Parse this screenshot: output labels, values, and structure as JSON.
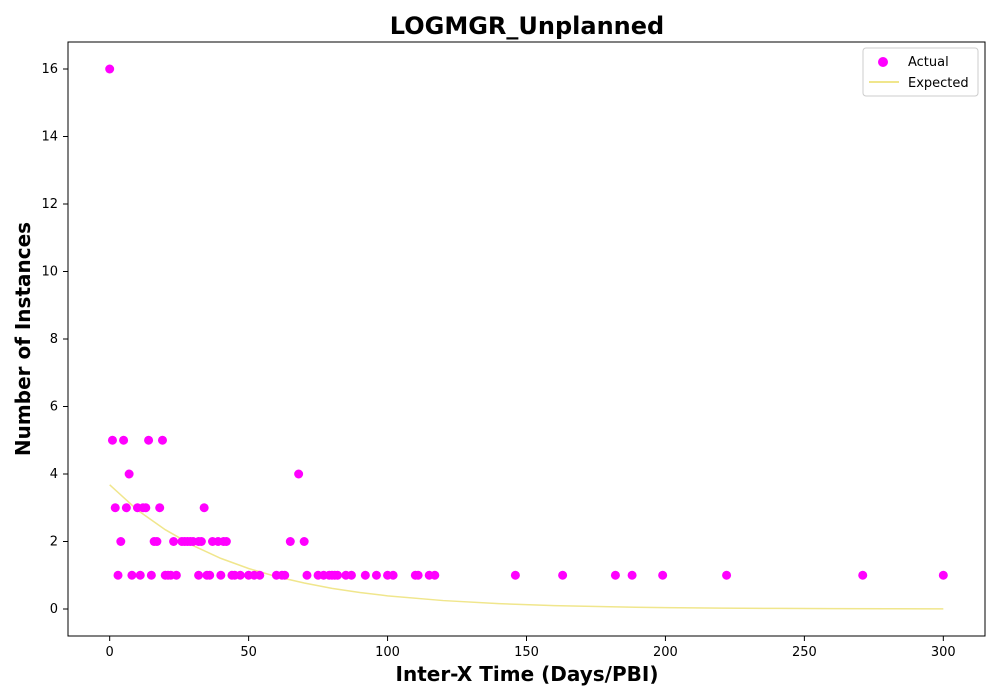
{
  "chart_data": {
    "type": "scatter",
    "title": "LOGMGR_Unplanned",
    "xlabel": "Inter-X Time (Days/PBI)",
    "ylabel": "Number of Instances",
    "xlim": [
      -15,
      315
    ],
    "ylim": [
      -0.8,
      16.8
    ],
    "xticks": [
      0,
      50,
      100,
      150,
      200,
      250,
      300
    ],
    "yticks": [
      0,
      2,
      4,
      6,
      8,
      10,
      12,
      14,
      16
    ],
    "grid": false,
    "legend_position": "top-right",
    "series": [
      {
        "name": "Actual",
        "kind": "scatter",
        "color": "#ff00ff",
        "points": [
          [
            0,
            16
          ],
          [
            1,
            5
          ],
          [
            2,
            3
          ],
          [
            3,
            1
          ],
          [
            4,
            2
          ],
          [
            5,
            5
          ],
          [
            6,
            3
          ],
          [
            7,
            4
          ],
          [
            8,
            1
          ],
          [
            10,
            3
          ],
          [
            11,
            1
          ],
          [
            12,
            3
          ],
          [
            13,
            3
          ],
          [
            14,
            5
          ],
          [
            15,
            1
          ],
          [
            16,
            2
          ],
          [
            17,
            2
          ],
          [
            18,
            3
          ],
          [
            19,
            5
          ],
          [
            20,
            1
          ],
          [
            21,
            1
          ],
          [
            22,
            1
          ],
          [
            23,
            2
          ],
          [
            24,
            1
          ],
          [
            26,
            2
          ],
          [
            27,
            2
          ],
          [
            28,
            2
          ],
          [
            29,
            2
          ],
          [
            30,
            2
          ],
          [
            32,
            1
          ],
          [
            32,
            2
          ],
          [
            33,
            2
          ],
          [
            34,
            3
          ],
          [
            35,
            1
          ],
          [
            36,
            1
          ],
          [
            37,
            2
          ],
          [
            39,
            2
          ],
          [
            40,
            1
          ],
          [
            41,
            2
          ],
          [
            42,
            2
          ],
          [
            44,
            1
          ],
          [
            45,
            1
          ],
          [
            47,
            1
          ],
          [
            50,
            1
          ],
          [
            52,
            1
          ],
          [
            54,
            1
          ],
          [
            60,
            1
          ],
          [
            62,
            1
          ],
          [
            63,
            1
          ],
          [
            65,
            2
          ],
          [
            68,
            4
          ],
          [
            70,
            2
          ],
          [
            71,
            1
          ],
          [
            75,
            1
          ],
          [
            77,
            1
          ],
          [
            79,
            1
          ],
          [
            80,
            1
          ],
          [
            81,
            1
          ],
          [
            82,
            1
          ],
          [
            85,
            1
          ],
          [
            87,
            1
          ],
          [
            92,
            1
          ],
          [
            96,
            1
          ],
          [
            100,
            1
          ],
          [
            102,
            1
          ],
          [
            110,
            1
          ],
          [
            111,
            1
          ],
          [
            115,
            1
          ],
          [
            117,
            1
          ],
          [
            146,
            1
          ],
          [
            163,
            1
          ],
          [
            182,
            1
          ],
          [
            188,
            1
          ],
          [
            199,
            1
          ],
          [
            222,
            1
          ],
          [
            271,
            1
          ],
          [
            300,
            1
          ]
        ]
      },
      {
        "name": "Expected",
        "kind": "line",
        "color": "#f0e68c",
        "points": [
          [
            0,
            3.68
          ],
          [
            10,
            2.93
          ],
          [
            20,
            2.35
          ],
          [
            30,
            1.88
          ],
          [
            40,
            1.5
          ],
          [
            50,
            1.2
          ],
          [
            60,
            0.96
          ],
          [
            70,
            0.77
          ],
          [
            80,
            0.61
          ],
          [
            90,
            0.49
          ],
          [
            100,
            0.39
          ],
          [
            120,
            0.25
          ],
          [
            140,
            0.16
          ],
          [
            160,
            0.1
          ],
          [
            180,
            0.065
          ],
          [
            200,
            0.04
          ],
          [
            220,
            0.026
          ],
          [
            240,
            0.017
          ],
          [
            260,
            0.011
          ],
          [
            280,
            0.007
          ],
          [
            300,
            0.004
          ]
        ]
      }
    ]
  }
}
